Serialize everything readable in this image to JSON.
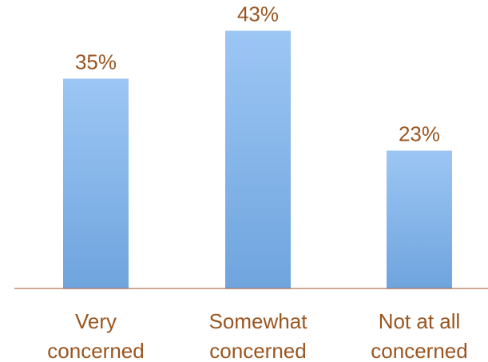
{
  "chart_data": {
    "type": "bar",
    "categories": [
      [
        "Very",
        "concerned"
      ],
      [
        "Somewhat",
        "concerned"
      ],
      [
        "Not at all",
        "concerned"
      ]
    ],
    "values": [
      35,
      43,
      23
    ],
    "value_labels": [
      "35%",
      "43%",
      "23%"
    ],
    "ylim": [
      0,
      50
    ],
    "grid": false,
    "colors": {
      "bar_top": "#9cc6f4",
      "bar_bottom": "#6fa4de",
      "baseline": "#a0522d",
      "label_text": "#9a5520"
    }
  }
}
